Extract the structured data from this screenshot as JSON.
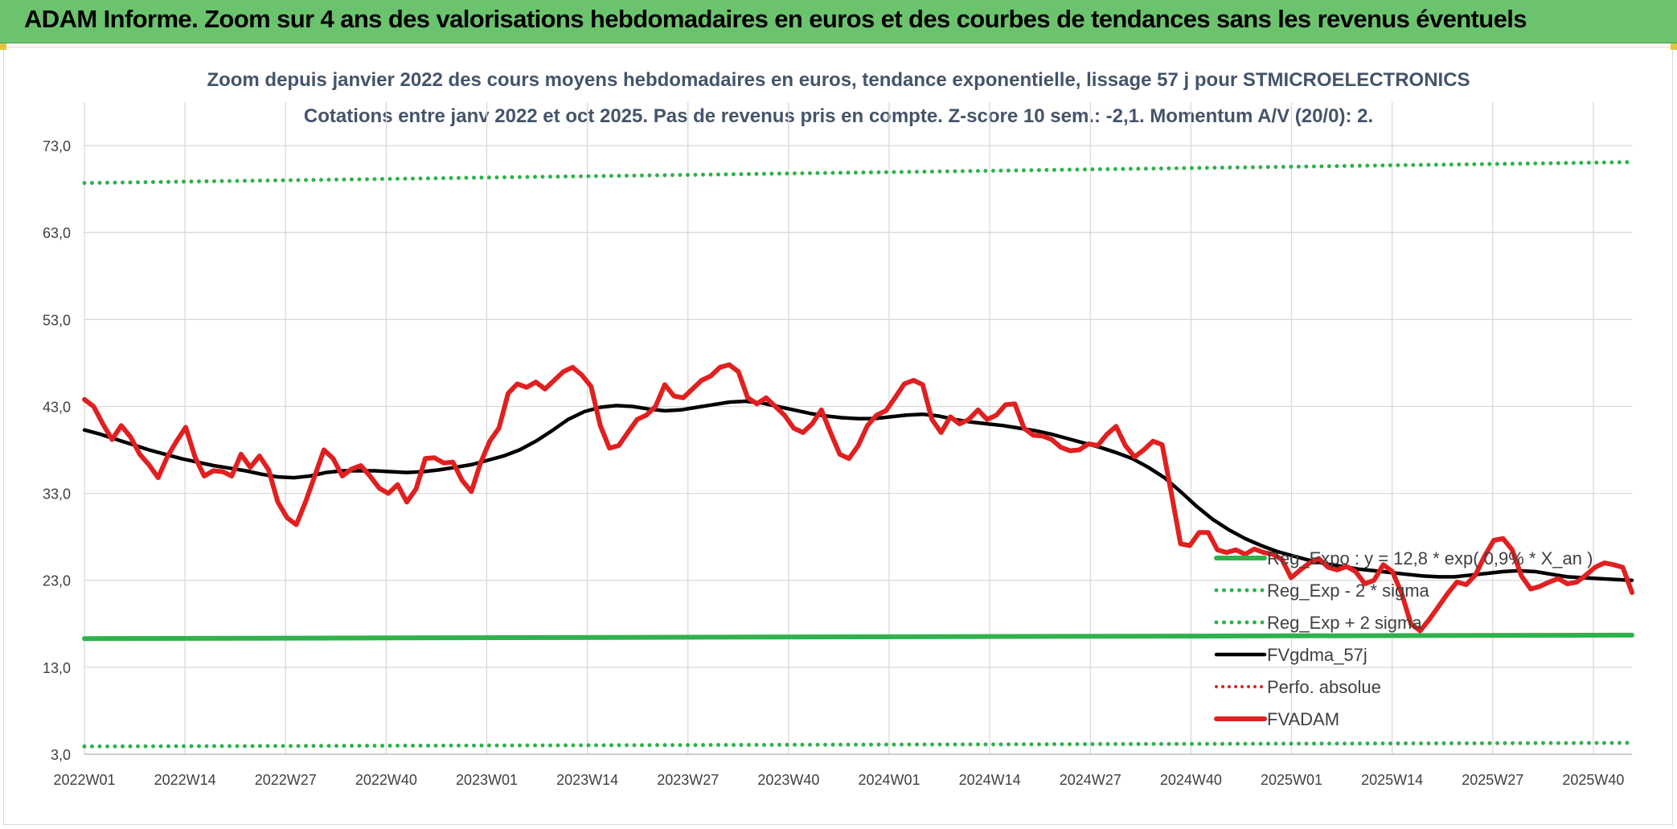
{
  "banner": {
    "title": "ADAM Informe. Zoom sur 4 ans des valorisations hebdomadaires en euros et des courbes de tendances sans les revenus éventuels"
  },
  "colors": {
    "banner": "#6cc36e",
    "reg_expo": "#2fb24c",
    "sigma": "#2fb24c",
    "fv_gdma": "#000000",
    "perfo": "#e02020",
    "fvadam": "#e02020",
    "grid": "#d9d9d9",
    "title": "#44546a"
  },
  "chart_data": {
    "type": "line",
    "title": "Zoom depuis janvier 2022 des cours moyens hebdomadaires en euros, tendance exponentielle, lissage 57 j pour STMICROELECTRONICS",
    "subtitle": "Cotations entre janv 2022 et oct 2025. Pas de revenus pris en compte. Z-score 10 sem.: -2,1. Momentum A/V (20/0): 2.",
    "xlabel": "",
    "ylabel": "",
    "ylim": [
      3,
      78
    ],
    "yticks": [
      "3,0",
      "13,0",
      "23,0",
      "33,0",
      "43,0",
      "53,0",
      "63,0",
      "73,0"
    ],
    "ytick_values": [
      3,
      13,
      23,
      33,
      43,
      53,
      63,
      73
    ],
    "xticks": [
      "2022W01",
      "2022W14",
      "2022W27",
      "2022W40",
      "2023W01",
      "2023W14",
      "2023W27",
      "2023W40",
      "2024W01",
      "2024W14",
      "2024W27",
      "2024W40",
      "2025W01",
      "2025W14",
      "2025W27",
      "2025W40"
    ],
    "xtick_index": [
      0,
      13,
      26,
      39,
      52,
      65,
      78,
      91,
      104,
      117,
      130,
      143,
      156,
      169,
      182,
      195
    ],
    "n_weeks": 201,
    "legend_position": "right, lower",
    "series": [
      {
        "name": "Reg_Expo : y = 12,8 * exp( 0,9% *  X_an )",
        "style": "solid-thick",
        "values": [
          16.3,
          16.4,
          16.5,
          16.6,
          16.7
        ]
      },
      {
        "name": "Reg_Exp - 2 * sigma",
        "style": "dotted",
        "values": [
          3.9,
          4.0,
          4.1,
          4.2,
          4.3
        ]
      },
      {
        "name": "Reg_Exp + 2 sigma",
        "style": "dotted",
        "values": [
          68.7,
          69.3,
          69.9,
          70.5,
          71.1
        ]
      },
      {
        "name": "FVgdma_57j",
        "style": "solid",
        "values": [
          40.3,
          39.8,
          39.2,
          38.6,
          38.0,
          37.5,
          37.0,
          36.6,
          36.2,
          35.9,
          35.6,
          35.2,
          34.9,
          34.8,
          35.0,
          35.4,
          35.6,
          35.6,
          35.6,
          35.5,
          35.4,
          35.5,
          35.7,
          36.0,
          36.3,
          36.8,
          37.3,
          38.0,
          39.0,
          40.2,
          41.5,
          42.4,
          42.9,
          43.1,
          43.0,
          42.7,
          42.5,
          42.6,
          42.9,
          43.2,
          43.5,
          43.6,
          43.4,
          43.0,
          42.6,
          42.2,
          41.9,
          41.7,
          41.6,
          41.6,
          41.8,
          42.0,
          42.1,
          41.9,
          41.5,
          41.2,
          41.0,
          40.8,
          40.5,
          40.2,
          39.8,
          39.3,
          38.8,
          38.3,
          37.7,
          37.0,
          36.0,
          34.8,
          33.2,
          31.5,
          30.0,
          28.8,
          27.8,
          27.0,
          26.3,
          25.8,
          25.3,
          24.9,
          24.6,
          24.3,
          24.1,
          23.9,
          23.7,
          23.5,
          23.4,
          23.4,
          23.6,
          23.8,
          24.0,
          24.1,
          24.0,
          23.7,
          23.4,
          23.3,
          23.2,
          23.1,
          23.0
        ]
      },
      {
        "name": "Perfo. absolue",
        "style": "dotted",
        "values": []
      },
      {
        "name": "FVADAM",
        "style": "solid-thick",
        "values": [
          43.8,
          43.0,
          41.0,
          39.2,
          40.8,
          39.5,
          37.5,
          36.3,
          34.8,
          37.2,
          39.0,
          40.6,
          37.2,
          35.0,
          35.6,
          35.5,
          35.0,
          37.5,
          36.0,
          37.3,
          35.7,
          32.0,
          30.2,
          29.4,
          32.0,
          35.0,
          38.0,
          37.0,
          35.0,
          35.8,
          36.2,
          35.0,
          33.6,
          33.0,
          34.0,
          32.0,
          33.5,
          37.0,
          37.1,
          36.5,
          36.6,
          34.5,
          33.2,
          36.5,
          39.0,
          40.5,
          44.5,
          45.6,
          45.2,
          45.8,
          45.0,
          46.0,
          47.0,
          47.5,
          46.6,
          45.3,
          40.8,
          38.2,
          38.5,
          40.0,
          41.5,
          42.0,
          43.0,
          45.5,
          44.2,
          44.0,
          45.0,
          46.0,
          46.5,
          47.5,
          47.8,
          47.0,
          44.0,
          43.3,
          44.0,
          43.0,
          42.0,
          40.5,
          40.0,
          41.0,
          42.6,
          40.0,
          37.5,
          37.0,
          38.5,
          40.8,
          42.0,
          42.5,
          44.0,
          45.6,
          46.0,
          45.5,
          41.5,
          40.0,
          41.8,
          41.0,
          41.5,
          42.6,
          41.5,
          42.0,
          43.2,
          43.3,
          40.5,
          39.7,
          39.6,
          39.2,
          38.3,
          37.9,
          38.0,
          38.7,
          38.5,
          39.8,
          40.7,
          38.5,
          37.2,
          38.0,
          39.0,
          38.6,
          33.0,
          27.2,
          27.0,
          28.5,
          28.5,
          26.5,
          26.2,
          26.5,
          26.0,
          26.6,
          26.2,
          26.0,
          25.4,
          23.3,
          24.2,
          25.0,
          25.5,
          24.5,
          24.2,
          24.6,
          24.0,
          22.6,
          23.0,
          24.8,
          24.0,
          21.5,
          18.0,
          17.2,
          18.5,
          20.0,
          21.5,
          22.8,
          22.5,
          23.6,
          25.8,
          27.6,
          27.8,
          26.5,
          23.5,
          22.0,
          22.3,
          22.8,
          23.2,
          22.6,
          22.8,
          23.6,
          24.5,
          25.0,
          24.8,
          24.5,
          21.6
        ]
      }
    ]
  }
}
